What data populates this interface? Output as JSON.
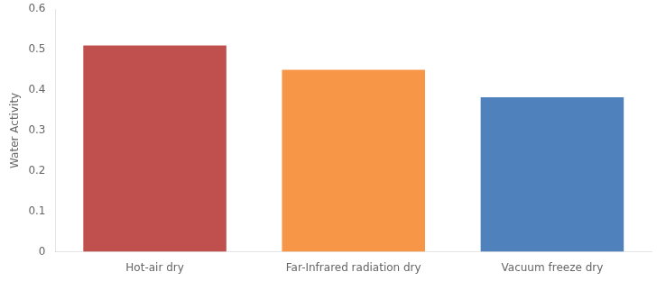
{
  "chart_data": {
    "type": "bar",
    "categories": [
      "Hot-air dry",
      "Far-Infrared radiation dry",
      "Vacuum freeze dry"
    ],
    "values": [
      0.51,
      0.45,
      0.382
    ],
    "colors": [
      "#c0504d",
      "#f79646",
      "#4f81bd"
    ],
    "ylabel": "Water Activity",
    "ylim": [
      0,
      0.6
    ],
    "yticks": [
      0,
      0.1,
      0.2,
      0.3,
      0.4,
      0.5,
      0.6
    ],
    "grid": false
  }
}
